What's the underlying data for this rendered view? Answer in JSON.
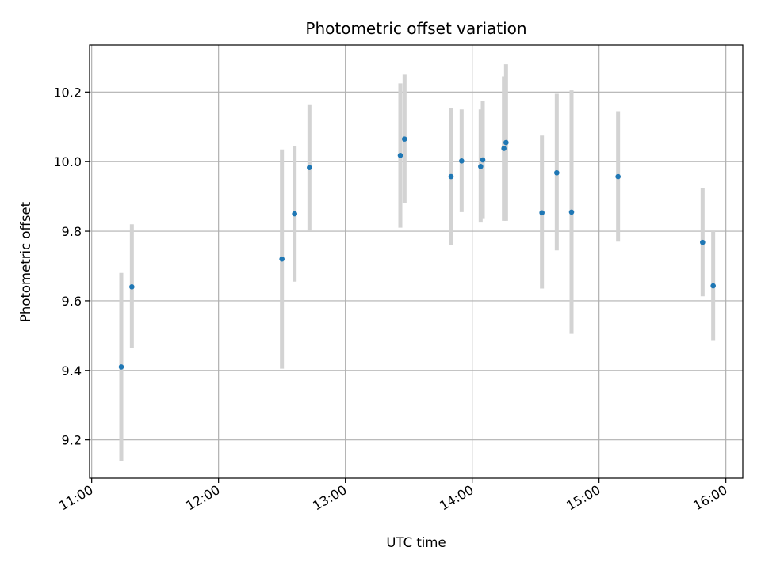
{
  "chart_data": {
    "type": "scatter",
    "title": "Photometric offset variation",
    "xlabel": "UTC time",
    "ylabel": "Photometric offset",
    "grid": true,
    "xlim": [
      "10:59",
      "16:08"
    ],
    "ylim": [
      9.09,
      10.335
    ],
    "x_ticks": [
      "11:00",
      "12:00",
      "13:00",
      "14:00",
      "15:00",
      "16:00"
    ],
    "y_ticks": [
      "9.2",
      "9.4",
      "9.6",
      "9.8",
      "10.0",
      "10.2"
    ],
    "marker_color": "#1f77b4",
    "errorbar_color": "#d3d3d3",
    "series": [
      {
        "points": [
          {
            "x": "11:14",
            "y": 9.41,
            "y_low": 9.14,
            "y_high": 9.68
          },
          {
            "x": "11:19",
            "y": 9.64,
            "y_low": 9.465,
            "y_high": 9.82
          },
          {
            "x": "12:30",
            "y": 9.72,
            "y_low": 9.405,
            "y_high": 10.035
          },
          {
            "x": "12:36",
            "y": 9.85,
            "y_low": 9.655,
            "y_high": 10.045
          },
          {
            "x": "12:43",
            "y": 9.983,
            "y_low": 9.8,
            "y_high": 10.165
          },
          {
            "x": "13:26",
            "y": 10.018,
            "y_low": 9.81,
            "y_high": 10.225
          },
          {
            "x": "13:28",
            "y": 10.065,
            "y_low": 9.88,
            "y_high": 10.25
          },
          {
            "x": "13:50",
            "y": 9.957,
            "y_low": 9.76,
            "y_high": 10.155
          },
          {
            "x": "13:55",
            "y": 10.002,
            "y_low": 9.855,
            "y_high": 10.15
          },
          {
            "x": "14:04",
            "y": 9.986,
            "y_low": 9.825,
            "y_high": 10.15
          },
          {
            "x": "14:05",
            "y": 10.005,
            "y_low": 9.835,
            "y_high": 10.175
          },
          {
            "x": "14:15",
            "y": 10.038,
            "y_low": 9.83,
            "y_high": 10.245
          },
          {
            "x": "14:16",
            "y": 10.055,
            "y_low": 9.83,
            "y_high": 10.28
          },
          {
            "x": "14:33",
            "y": 9.853,
            "y_low": 9.635,
            "y_high": 10.075
          },
          {
            "x": "14:40",
            "y": 9.968,
            "y_low": 9.745,
            "y_high": 10.195
          },
          {
            "x": "14:47",
            "y": 9.855,
            "y_low": 9.505,
            "y_high": 10.205
          },
          {
            "x": "15:09",
            "y": 9.957,
            "y_low": 9.77,
            "y_high": 10.145
          },
          {
            "x": "15:49",
            "y": 9.768,
            "y_low": 9.613,
            "y_high": 9.925
          },
          {
            "x": "15:54",
            "y": 9.643,
            "y_low": 9.485,
            "y_high": 9.8
          }
        ]
      }
    ]
  }
}
